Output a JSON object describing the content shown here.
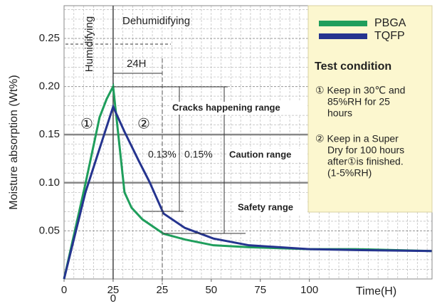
{
  "chart_data": {
    "type": "line",
    "y_label": "Moisture absorption (Wt%)",
    "x_label": "Time(H)",
    "xlim": [
      0,
      187.5
    ],
    "ylim": [
      0,
      0.284
    ],
    "xticks": [
      0,
      25,
      {
        "value": 25,
        "label": "0"
      },
      {
        "value": 50,
        "label": "25"
      },
      {
        "value": 75,
        "label": "50"
      },
      {
        "value": 100,
        "label": "75"
      },
      {
        "value": 125,
        "label": "100"
      }
    ],
    "yticks": [
      0.05,
      {
        "value": 0.1,
        "label": "0.10"
      },
      0.15,
      {
        "value": 0.2,
        "label": "0.20"
      },
      0.25
    ],
    "grid": true,
    "reference_lines_y": [
      0.1,
      0.15
    ],
    "reference_line_x": 25,
    "series": [
      {
        "name": "PBGA",
        "color": "#1f9e5c",
        "x": [
          0,
          10.9,
          18.1,
          21.7,
          25,
          30.8,
          34.4,
          39.9,
          50.7,
          61.6,
          76.1,
          94.2,
          125,
          148.6,
          187.3
        ],
        "values": [
          0,
          0.099,
          0.168,
          0.187,
          0.2,
          0.09,
          0.074,
          0.062,
          0.047,
          0.041,
          0.035,
          0.033,
          0.031,
          0.031,
          0.029
        ]
      },
      {
        "name": "TQFP",
        "color": "#25348f",
        "x": [
          0,
          10.9,
          25,
          30.8,
          38,
          43.5,
          50.7,
          61.6,
          76.1,
          94.2,
          125,
          148.6,
          187.3
        ],
        "values": [
          0,
          0.09,
          0.179,
          0.153,
          0.123,
          0.101,
          0.068,
          0.053,
          0.042,
          0.035,
          0.031,
          0.03,
          0.029
        ]
      }
    ],
    "annotations": {
      "humidifying": "Humidifying",
      "dehumidifying": "Dehumidifying",
      "period": "24H",
      "step1": "①",
      "step2": "②",
      "cracks": "Cracks happening range",
      "pct1": "0.13%",
      "pct2": "0.15%",
      "caution": "Caution range",
      "safety": "Safety range"
    },
    "legend_box": {
      "heading": "Test condition",
      "note1": [
        "① Keep in 30℃ and",
        "85%RH for 25",
        "hours"
      ],
      "note2": [
        "② Keep in a Super",
        "Dry for 100 hours",
        "after①is finished.",
        "(1-5%RH)"
      ]
    }
  }
}
